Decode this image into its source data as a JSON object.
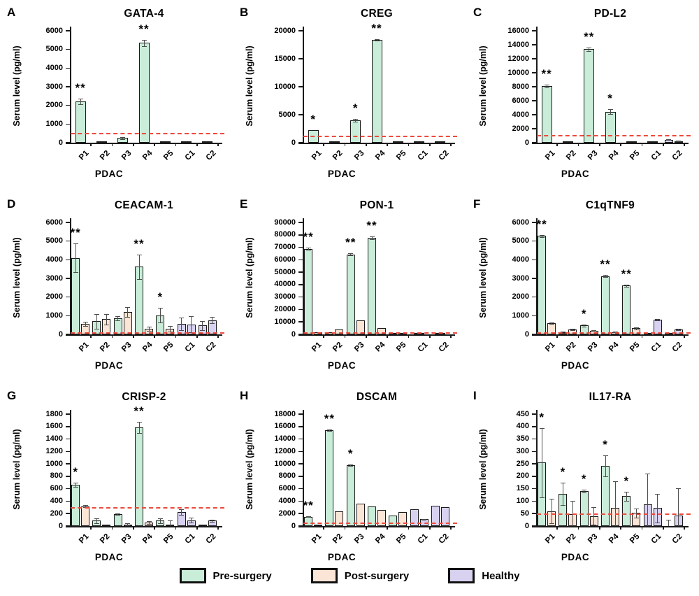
{
  "figure": {
    "y_axis_label": "Serum level (pg/ml)",
    "x_axis_label": "PDAC",
    "colors": {
      "pre": "#c9edd9",
      "post": "#fbe5d6",
      "healthy": "#d8d2f0",
      "bar_border": "#1a1a1a",
      "ref_line": "#ed4a3d",
      "error_bar": "#4d4d4d",
      "axis": "#1a1a1a"
    },
    "legend": {
      "items": [
        {
          "label": "Pre-surgery",
          "color_key": "pre"
        },
        {
          "label": "Post-surgery",
          "color_key": "post"
        },
        {
          "label": "Healthy",
          "color_key": "healthy"
        }
      ]
    }
  },
  "chart_data": {
    "type": "bar",
    "ylabel": "Serum level (pg/ml)",
    "xlabel": "PDAC",
    "categories": [
      "P1",
      "P2",
      "P3",
      "P4",
      "P5",
      "C1",
      "C2"
    ],
    "series_legend": [
      "Pre-surgery",
      "Post-surgery",
      "Healthy"
    ],
    "panels": [
      {
        "letter": "A",
        "title": "GATA-4",
        "ylim": [
          0,
          6000
        ],
        "ystep": 1000,
        "ref_line": 480,
        "groups": [
          [
            {
              "series": "pre",
              "value": 2200,
              "err": 150,
              "sig": "**"
            }
          ],
          [
            {
              "series": "pre",
              "value": 15
            }
          ],
          [
            {
              "series": "pre",
              "value": 250,
              "err": 60
            }
          ],
          [
            {
              "series": "pre",
              "value": 5350,
              "err": 180,
              "sig": "**"
            }
          ],
          [
            {
              "series": "pre",
              "value": 12
            }
          ],
          [
            {
              "series": "healthy",
              "value": 12
            }
          ],
          [
            {
              "series": "healthy",
              "value": 12
            }
          ]
        ]
      },
      {
        "letter": "B",
        "title": "CREG",
        "ylim": [
          0,
          20000
        ],
        "ystep": 5000,
        "ref_line": 1100,
        "groups": [
          [
            {
              "series": "pre",
              "value": 2250,
              "sig": "*"
            }
          ],
          [
            {
              "series": "pre",
              "value": 40
            }
          ],
          [
            {
              "series": "pre",
              "value": 4000,
              "err": 250,
              "sig": "*"
            }
          ],
          [
            {
              "series": "pre",
              "value": 18400,
              "err": 150,
              "sig": "**"
            }
          ],
          [
            {
              "series": "pre",
              "value": 40
            }
          ],
          [
            {
              "series": "healthy",
              "value": 40
            }
          ],
          [
            {
              "series": "healthy",
              "value": 40
            }
          ]
        ]
      },
      {
        "letter": "C",
        "title": "PD-L2",
        "ylim": [
          0,
          16000
        ],
        "ystep": 2000,
        "ref_line": 1050,
        "groups": [
          [
            {
              "series": "pre",
              "value": 8100,
              "err": 200,
              "sig": "**"
            }
          ],
          [
            {
              "series": "pre",
              "value": 60
            }
          ],
          [
            {
              "series": "pre",
              "value": 13400,
              "err": 250,
              "sig": "**"
            }
          ],
          [
            {
              "series": "pre",
              "value": 4450,
              "err": 350,
              "sig": "*"
            }
          ],
          [
            {
              "series": "pre",
              "value": 90
            }
          ],
          [
            {
              "series": "healthy",
              "value": 60
            }
          ],
          [
            {
              "series": "healthy",
              "value": 420,
              "err": 60
            },
            {
              "series": "healthy",
              "value": 230,
              "err": 40
            }
          ]
        ]
      },
      {
        "letter": "D",
        "title": "CEACAM-1",
        "ylim": [
          0,
          6000
        ],
        "ystep": 1000,
        "ref_line": 70,
        "groups": [
          [
            {
              "series": "pre",
              "value": 4100,
              "err": 780,
              "sig": "**"
            },
            {
              "series": "post",
              "value": 570,
              "err": 120
            }
          ],
          [
            {
              "series": "pre",
              "value": 700,
              "err": 400
            },
            {
              "series": "post",
              "value": 810,
              "err": 280
            }
          ],
          [
            {
              "series": "pre",
              "value": 870,
              "err": 120
            },
            {
              "series": "post",
              "value": 1210,
              "err": 270
            }
          ],
          [
            {
              "series": "pre",
              "value": 3620,
              "err": 650,
              "sig": "**"
            },
            {
              "series": "post",
              "value": 300,
              "err": 130
            }
          ],
          [
            {
              "series": "pre",
              "value": 1020,
              "err": 400,
              "sig": "*"
            },
            {
              "series": "post",
              "value": 300,
              "err": 140
            }
          ],
          [
            {
              "series": "healthy",
              "value": 560,
              "err": 350
            },
            {
              "series": "healthy",
              "value": 530,
              "err": 430
            }
          ],
          [
            {
              "series": "healthy",
              "value": 480,
              "err": 250
            },
            {
              "series": "healthy",
              "value": 760,
              "err": 170
            }
          ]
        ]
      },
      {
        "letter": "E",
        "title": "PON-1",
        "ylim": [
          0,
          90000
        ],
        "ystep": 10000,
        "ref_line": 1300,
        "groups": [
          [
            {
              "series": "pre",
              "value": 68700,
              "err": 900,
              "sig": "**"
            },
            {
              "series": "post",
              "value": 1500
            }
          ],
          [
            {
              "series": "pre",
              "value": 1600
            },
            {
              "series": "post",
              "value": 4000
            }
          ],
          [
            {
              "series": "pre",
              "value": 64200,
              "err": 900,
              "sig": "**"
            },
            {
              "series": "post",
              "value": 11500
            }
          ],
          [
            {
              "series": "pre",
              "value": 77500,
              "err": 1000,
              "sig": "**"
            },
            {
              "series": "post",
              "value": 4800
            }
          ],
          [
            {
              "series": "pre",
              "value": 600
            },
            {
              "series": "post",
              "value": 250
            }
          ],
          [
            {
              "series": "healthy",
              "value": 200
            }
          ],
          [
            {
              "series": "healthy",
              "value": 200
            }
          ]
        ]
      },
      {
        "letter": "F",
        "title": "C1qTNF9",
        "ylim": [
          0,
          6000
        ],
        "ystep": 1000,
        "ref_line": 70,
        "groups": [
          [
            {
              "series": "pre",
              "value": 5280,
              "err": 60,
              "sig": "**"
            },
            {
              "series": "post",
              "value": 600,
              "err": 40
            }
          ],
          [
            {
              "series": "pre",
              "value": 110,
              "err": 30
            },
            {
              "series": "post",
              "value": 250,
              "err": 40
            }
          ],
          [
            {
              "series": "pre",
              "value": 480,
              "err": 60,
              "sig": "*"
            },
            {
              "series": "post",
              "value": 200,
              "err": 30
            }
          ],
          [
            {
              "series": "pre",
              "value": 3130,
              "err": 70,
              "sig": "**"
            },
            {
              "series": "post",
              "value": 130,
              "err": 25
            }
          ],
          [
            {
              "series": "pre",
              "value": 2620,
              "err": 60,
              "sig": "**"
            },
            {
              "series": "post",
              "value": 320,
              "err": 40
            }
          ],
          [
            {
              "series": "healthy",
              "value": 50
            },
            {
              "series": "healthy",
              "value": 800,
              "err": 40
            }
          ],
          [
            {
              "series": "healthy",
              "value": 20
            },
            {
              "series": "healthy",
              "value": 250,
              "err": 40
            }
          ]
        ]
      },
      {
        "letter": "G",
        "title": "CRISP-2",
        "ylim": [
          0,
          1800
        ],
        "ystep": 200,
        "ref_line": 290,
        "groups": [
          [
            {
              "series": "pre",
              "value": 660,
              "err": 35,
              "sig": "*"
            },
            {
              "series": "post",
              "value": 320,
              "err": 20
            }
          ],
          [
            {
              "series": "pre",
              "value": 85,
              "err": 35
            },
            {
              "series": "post",
              "value": 10
            }
          ],
          [
            {
              "series": "pre",
              "value": 190,
              "err": 15
            },
            {
              "series": "post",
              "value": 25,
              "err": 15
            }
          ],
          [
            {
              "series": "pre",
              "value": 1590,
              "err": 90,
              "sig": "**"
            },
            {
              "series": "post",
              "value": 55,
              "err": 25
            }
          ],
          [
            {
              "series": "pre",
              "value": 85,
              "err": 35
            },
            {
              "series": "post",
              "value": 5,
              "err": 80
            }
          ],
          [
            {
              "series": "healthy",
              "value": 225,
              "err": 40
            },
            {
              "series": "healthy",
              "value": 95,
              "err": 35
            }
          ],
          [
            {
              "series": "healthy",
              "value": 8
            },
            {
              "series": "healthy",
              "value": 85,
              "err": 20
            }
          ]
        ]
      },
      {
        "letter": "H",
        "title": "DSCAM",
        "ylim": [
          0,
          18000
        ],
        "ystep": 2000,
        "ref_line": 500,
        "groups": [
          [
            {
              "series": "pre",
              "value": 1500,
              "err": 80,
              "sig": "**"
            },
            {
              "series": "post",
              "value": 120
            }
          ],
          [
            {
              "series": "pre",
              "value": 15400,
              "err": 150,
              "sig": "**"
            },
            {
              "series": "post",
              "value": 2400
            }
          ],
          [
            {
              "series": "pre",
              "value": 9800,
              "err": 150,
              "sig": "*"
            },
            {
              "series": "post",
              "value": 3600
            }
          ],
          [
            {
              "series": "pre",
              "value": 3100
            },
            {
              "series": "post",
              "value": 2550
            }
          ],
          [
            {
              "series": "pre",
              "value": 1650
            },
            {
              "series": "post",
              "value": 2250
            }
          ],
          [
            {
              "series": "healthy",
              "value": 2700
            },
            {
              "series": "healthy",
              "value": 1100,
              "err": 70
            }
          ],
          [
            {
              "series": "healthy",
              "value": 3300
            },
            {
              "series": "healthy",
              "value": 3050
            }
          ]
        ]
      },
      {
        "letter": "I",
        "title": "IL17-RA",
        "ylim": [
          0,
          450
        ],
        "ystep": 50,
        "ref_line": 48,
        "groups": [
          [
            {
              "series": "pre",
              "value": 255,
              "err": 140,
              "sig": "*"
            },
            {
              "series": "post",
              "value": 60,
              "err": 50
            }
          ],
          [
            {
              "series": "pre",
              "value": 128,
              "err": 45,
              "sig": "*"
            },
            {
              "series": "post",
              "value": 47,
              "err": 55
            }
          ],
          [
            {
              "series": "pre",
              "value": 140,
              "err": 5,
              "sig": "*"
            },
            {
              "series": "post",
              "value": 40,
              "err": 35
            }
          ],
          [
            {
              "series": "pre",
              "value": 242,
              "err": 43,
              "sig": "*"
            },
            {
              "series": "post",
              "value": 73,
              "err": 108
            }
          ],
          [
            {
              "series": "pre",
              "value": 120,
              "err": 18,
              "sig": "*"
            },
            {
              "series": "post",
              "value": 53,
              "err": 18
            }
          ],
          [
            {
              "series": "healthy",
              "value": 87,
              "err": 123
            },
            {
              "series": "healthy",
              "value": 72,
              "err": 58
            }
          ],
          [
            {
              "series": "healthy",
              "value": 0,
              "err": 25
            },
            {
              "series": "healthy",
              "value": 43,
              "err": 108
            }
          ]
        ]
      }
    ]
  }
}
